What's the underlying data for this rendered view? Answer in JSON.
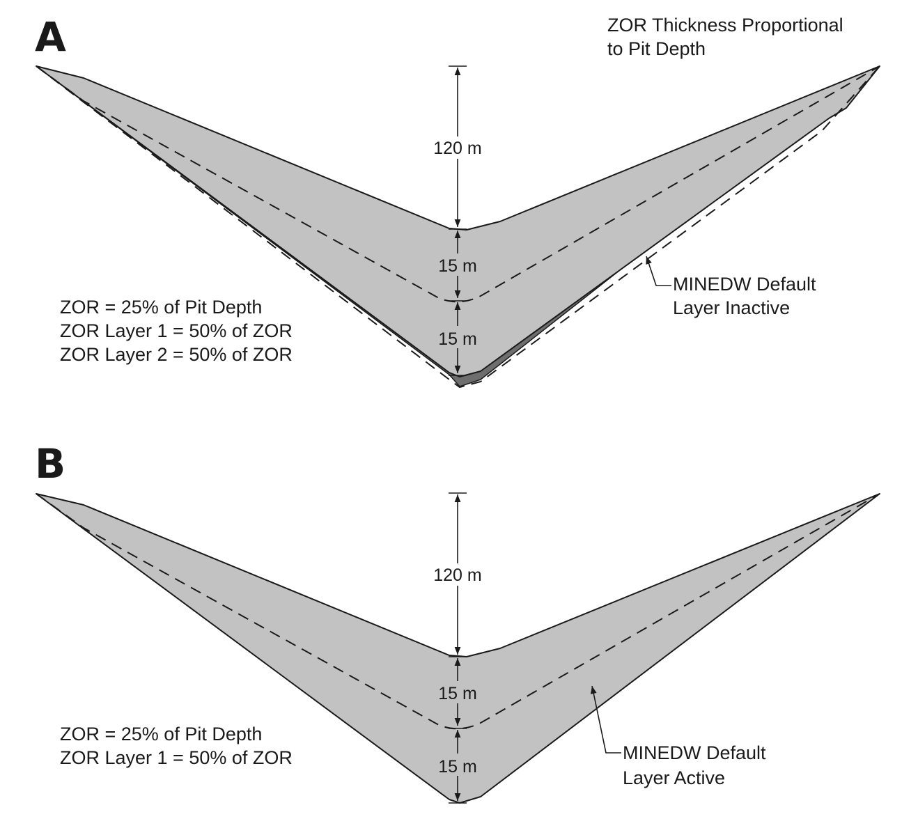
{
  "title": {
    "line1": "ZOR Thickness Proportional",
    "line2": "to Pit Depth"
  },
  "panels": [
    {
      "letter": "A",
      "dims": {
        "top": "120 m",
        "middle": "15 m",
        "bottom": "15 m"
      },
      "notes": [
        "ZOR = 25% of Pit Depth",
        "ZOR Layer 1 = 50% of ZOR",
        "ZOR Layer 2 = 50% of ZOR"
      ],
      "callout": {
        "line1": "MINEDW Default",
        "line2": "Layer Inactive"
      },
      "fill_color": "#c2c2c2",
      "inactive_layer_color": "#6e6e6e"
    },
    {
      "letter": "B",
      "dims": {
        "top": "120 m",
        "middle": "15 m",
        "bottom": "15 m"
      },
      "notes": [
        "ZOR = 25% of Pit Depth",
        "ZOR Layer 1 = 50% of ZOR"
      ],
      "callout": {
        "line1": "MINEDW Default",
        "line2": "Layer Active"
      },
      "fill_color": "#c2c2c2"
    }
  ]
}
